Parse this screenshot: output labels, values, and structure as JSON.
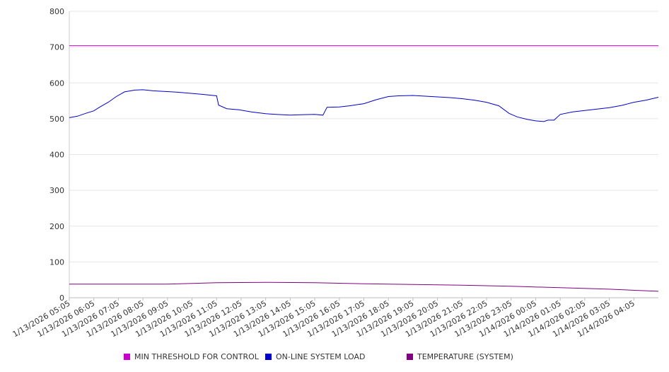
{
  "chart_data": {
    "type": "line",
    "ylim": [
      0,
      800
    ],
    "y_ticks": [
      0,
      100,
      200,
      300,
      400,
      500,
      600,
      700,
      800
    ],
    "x_tick_labels": [
      "1/13/2026 05:05",
      "1/13/2026 06:05",
      "1/13/2026 07:05",
      "1/13/2026 08:05",
      "1/13/2026 09:05",
      "1/13/2026 10:05",
      "1/13/2026 11:05",
      "1/13/2026 12:05",
      "1/13/2026 13:05",
      "1/13/2026 14:05",
      "1/13/2026 15:05",
      "1/13/2026 16:05",
      "1/13/2026 17:05",
      "1/13/2026 18:05",
      "1/13/2026 19:05",
      "1/13/2026 20:05",
      "1/13/2026 21:05",
      "1/13/2026 22:05",
      "1/13/2026 23:05",
      "1/14/2026 00:05",
      "1/14/2026 01:05",
      "1/14/2026 02:05",
      "1/14/2026 03:05",
      "1/14/2026 04:05"
    ],
    "x_range": [
      "1/13/2026 05:05",
      "1/14/2026 05:05"
    ],
    "grid": "horizontal",
    "legend_position": "bottom",
    "series": [
      {
        "name": "MIN THRESHOLD FOR CONTROL",
        "color": "#cc00cc",
        "x": [
          "1/13/2026 05:05",
          "1/14/2026 05:05"
        ],
        "values": [
          704,
          704
        ]
      },
      {
        "name": "ON-LINE SYSTEM LOAD",
        "color": "#0000cc",
        "x": [
          "1/13/2026 05:05",
          "1/13/2026 05:25",
          "1/13/2026 05:45",
          "1/13/2026 06:05",
          "1/13/2026 06:20",
          "1/13/2026 06:40",
          "1/13/2026 07:00",
          "1/13/2026 07:20",
          "1/13/2026 07:45",
          "1/13/2026 08:05",
          "1/13/2026 08:30",
          "1/13/2026 09:00",
          "1/13/2026 09:30",
          "1/13/2026 10:00",
          "1/13/2026 10:30",
          "1/13/2026 11:05",
          "1/13/2026 11:10",
          "1/13/2026 11:30",
          "1/13/2026 12:00",
          "1/13/2026 12:30",
          "1/13/2026 13:05",
          "1/13/2026 13:30",
          "1/13/2026 14:05",
          "1/13/2026 14:30",
          "1/13/2026 15:05",
          "1/13/2026 15:25",
          "1/13/2026 15:35",
          "1/13/2026 16:05",
          "1/13/2026 16:30",
          "1/13/2026 17:05",
          "1/13/2026 17:35",
          "1/13/2026 18:05",
          "1/13/2026 18:30",
          "1/13/2026 19:05",
          "1/13/2026 19:35",
          "1/13/2026 20:05",
          "1/13/2026 20:35",
          "1/13/2026 21:05",
          "1/13/2026 21:35",
          "1/13/2026 22:05",
          "1/13/2026 22:35",
          "1/13/2026 23:00",
          "1/13/2026 23:20",
          "1/13/2026 23:45",
          "1/14/2026 00:05",
          "1/14/2026 00:25",
          "1/14/2026 00:35",
          "1/14/2026 00:50",
          "1/14/2026 01:05",
          "1/14/2026 01:35",
          "1/14/2026 02:05",
          "1/14/2026 02:35",
          "1/14/2026 03:05",
          "1/14/2026 03:35",
          "1/14/2026 04:05",
          "1/14/2026 04:35",
          "1/14/2026 05:05"
        ],
        "values": [
          503,
          507,
          515,
          522,
          533,
          546,
          562,
          575,
          580,
          581,
          578,
          576,
          574,
          571,
          568,
          564,
          538,
          528,
          525,
          519,
          514,
          512,
          510,
          511,
          512,
          510,
          532,
          533,
          536,
          542,
          553,
          562,
          564,
          565,
          563,
          561,
          559,
          556,
          552,
          546,
          536,
          515,
          505,
          498,
          494,
          492,
          496,
          496,
          512,
          519,
          523,
          527,
          531,
          537,
          546,
          552,
          560
        ]
      },
      {
        "name": "TEMPERATURE (SYSTEM)",
        "color": "#800080",
        "x": [
          "1/13/2026 05:05",
          "1/13/2026 09:05",
          "1/13/2026 10:05",
          "1/13/2026 11:05",
          "1/13/2026 13:05",
          "1/13/2026 15:05",
          "1/13/2026 17:05",
          "1/13/2026 19:05",
          "1/13/2026 21:05",
          "1/13/2026 23:05",
          "1/14/2026 01:05",
          "1/14/2026 03:05",
          "1/14/2026 05:05"
        ],
        "values": [
          38,
          38,
          40,
          42,
          43,
          42,
          39,
          37,
          35,
          32,
          28,
          24,
          18
        ]
      }
    ]
  }
}
